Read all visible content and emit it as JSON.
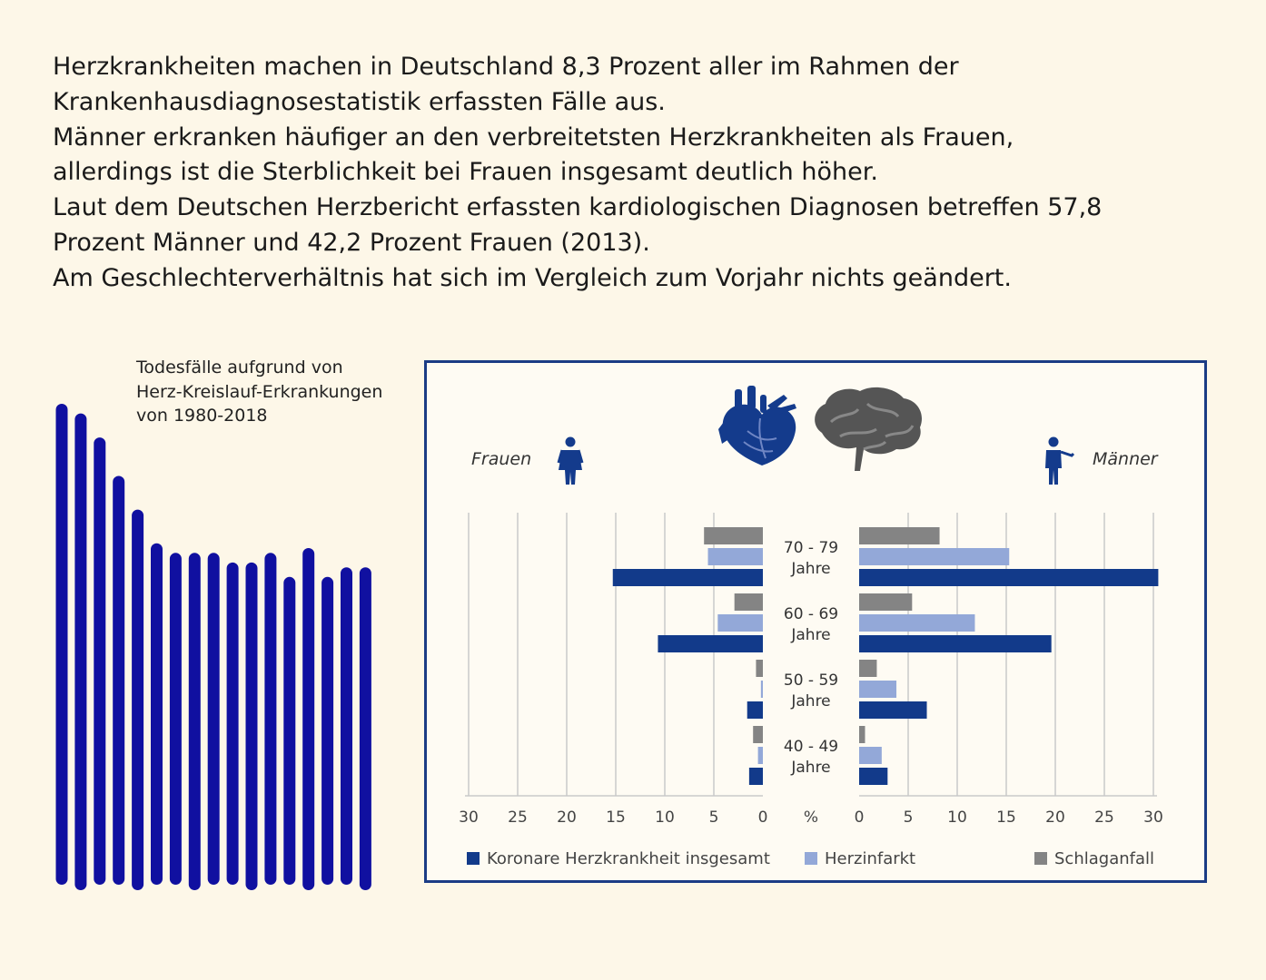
{
  "intro": {
    "lines": [
      "Herzkrankheiten machen in Deutschland 8,3 Prozent aller im Rahmen der",
      "Krankenhausdiagnosestatistik erfassten Fälle aus.",
      "Männer erkranken häufiger an den verbreitetsten Herzkrankheiten als Frauen,",
      "allerdings ist die Sterblichkeit bei Frauen insgesamt deutlich höher.",
      "Laut dem Deutschen Herzbericht erfassten kardiologischen Diagnosen betreffen 57,8",
      "Prozent Männer und 42,2 Prozent Frauen (2013).",
      "Am Geschlechterverhältnis hat sich  im Vergleich zum Vorjahr nichts geändert."
    ]
  },
  "chart_data": [
    {
      "type": "bar",
      "title_lines": [
        "Todesfälle aufgrund von",
        "Herz-Kreislauf-Erkrankungen",
        "von 1980-2018"
      ],
      "values": [
        100,
        98,
        93,
        85,
        78,
        71,
        69,
        69,
        69,
        67,
        67,
        69,
        64,
        70,
        64,
        66,
        66
      ],
      "color": "#1010a0",
      "axes_shown": false
    },
    {
      "type": "bar",
      "orientation": "horizontal-butterfly",
      "left_group_label": "Frauen",
      "right_group_label": "Männer",
      "unit_label": "%",
      "categories": [
        [
          "70 - 79",
          "Jahre"
        ],
        [
          "60 - 69",
          "Jahre"
        ],
        [
          "50 - 59",
          "Jahre"
        ],
        [
          "40 - 49",
          "Jahre"
        ]
      ],
      "ticks": [
        0,
        5,
        10,
        15,
        20,
        25,
        30
      ],
      "xlim": [
        0,
        30
      ],
      "grid": true,
      "legend_position": "bottom",
      "series": [
        {
          "name": "Koronare Herzkrankheit insgesamt",
          "color": "#123a8a",
          "frauen": [
            15.3,
            10.7,
            1.6,
            1.4
          ],
          "maenner": [
            30.5,
            19.6,
            6.9,
            2.9
          ]
        },
        {
          "name": "Herzinfarkt",
          "color": "#93a8d8",
          "frauen": [
            5.6,
            4.6,
            0.2,
            0.5
          ],
          "maenner": [
            15.3,
            11.8,
            3.8,
            2.3
          ]
        },
        {
          "name": "Schlaganfall",
          "color": "#848484",
          "frauen": [
            6.0,
            2.9,
            0.7,
            1.0
          ],
          "maenner": [
            8.2,
            5.4,
            1.8,
            0.6
          ]
        }
      ],
      "icons": [
        "heart-icon",
        "brain-icon",
        "woman-icon",
        "man-icon"
      ]
    }
  ]
}
